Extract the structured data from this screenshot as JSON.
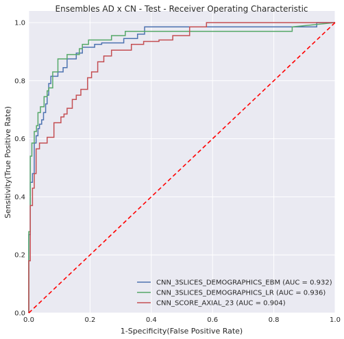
{
  "chart_data": {
    "type": "line",
    "title": "Ensembles AD x CN - Test - Receiver Operating Characteristic",
    "xlabel": "1-Specificity(False Positive Rate)",
    "ylabel": "Sensitivity(True Positive Rate)",
    "xlim": [
      0,
      1
    ],
    "ylim": [
      0,
      1.04
    ],
    "xticks": [
      0,
      0.2,
      0.4,
      0.6,
      0.8,
      1
    ],
    "xtick_labels": [
      "0.0",
      "0.2",
      "0.4",
      "0.6",
      "0.8",
      "1.0"
    ],
    "yticks": [
      0,
      0.2,
      0.4,
      0.6,
      0.8,
      1
    ],
    "ytick_labels": [
      "0.0",
      "0.2",
      "0.4",
      "0.6",
      "0.8",
      "1.0"
    ],
    "grid": true,
    "legend_position": "lower-right",
    "series": [
      {
        "name": "CNN_3SLICES_DEMOGRAPHICS_EBM (AUC = 0.932)",
        "color": "#4c72b0",
        "x": [
          0,
          0,
          0.005,
          0.005,
          0.012,
          0.012,
          0.018,
          0.018,
          0.024,
          0.024,
          0.03,
          0.03,
          0.035,
          0.035,
          0.042,
          0.042,
          0.048,
          0.048,
          0.055,
          0.055,
          0.06,
          0.06,
          0.065,
          0.065,
          0.072,
          0.072,
          0.095,
          0.095,
          0.112,
          0.112,
          0.125,
          0.125,
          0.155,
          0.155,
          0.175,
          0.175,
          0.215,
          0.215,
          0.238,
          0.238,
          0.31,
          0.31,
          0.355,
          0.355,
          0.378,
          0.378,
          0.94,
          0.94,
          1
        ],
        "y": [
          0,
          0.27,
          0.27,
          0.45,
          0.45,
          0.48,
          0.48,
          0.585,
          0.585,
          0.61,
          0.61,
          0.635,
          0.635,
          0.65,
          0.65,
          0.665,
          0.665,
          0.69,
          0.69,
          0.72,
          0.72,
          0.75,
          0.75,
          0.79,
          0.79,
          0.815,
          0.815,
          0.83,
          0.83,
          0.845,
          0.845,
          0.875,
          0.875,
          0.895,
          0.895,
          0.915,
          0.915,
          0.925,
          0.925,
          0.93,
          0.93,
          0.945,
          0.945,
          0.96,
          0.96,
          0.985,
          0.985,
          1,
          1
        ]
      },
      {
        "name": "CNN_3SLICES_DEMOGRAPHICS_LR (AUC = 0.936)",
        "color": "#55a868",
        "x": [
          0,
          0,
          0.005,
          0.005,
          0.01,
          0.01,
          0.018,
          0.018,
          0.025,
          0.025,
          0.03,
          0.03,
          0.038,
          0.038,
          0.05,
          0.05,
          0.06,
          0.06,
          0.065,
          0.065,
          0.078,
          0.078,
          0.095,
          0.095,
          0.125,
          0.125,
          0.165,
          0.165,
          0.175,
          0.175,
          0.195,
          0.195,
          0.27,
          0.27,
          0.315,
          0.315,
          0.86,
          0.86,
          1
        ],
        "y": [
          0,
          0.28,
          0.28,
          0.54,
          0.54,
          0.585,
          0.585,
          0.625,
          0.625,
          0.645,
          0.645,
          0.69,
          0.69,
          0.71,
          0.71,
          0.745,
          0.745,
          0.765,
          0.765,
          0.775,
          0.775,
          0.83,
          0.83,
          0.875,
          0.875,
          0.89,
          0.89,
          0.91,
          0.91,
          0.925,
          0.925,
          0.94,
          0.94,
          0.955,
          0.955,
          0.97,
          0.97,
          0.985,
          1
        ]
      },
      {
        "name": "CNN_SCORE_AXIAL_23 (AUC = 0.904)",
        "color": "#c44e52",
        "x": [
          0,
          0,
          0.005,
          0.005,
          0.012,
          0.012,
          0.018,
          0.018,
          0.024,
          0.024,
          0.035,
          0.035,
          0.06,
          0.06,
          0.082,
          0.082,
          0.105,
          0.105,
          0.115,
          0.115,
          0.125,
          0.125,
          0.142,
          0.142,
          0.155,
          0.155,
          0.17,
          0.17,
          0.192,
          0.192,
          0.205,
          0.205,
          0.225,
          0.225,
          0.245,
          0.245,
          0.27,
          0.27,
          0.335,
          0.335,
          0.375,
          0.375,
          0.425,
          0.425,
          0.47,
          0.47,
          0.525,
          0.525,
          0.58,
          0.58,
          0.86,
          0.86,
          1
        ],
        "y": [
          0,
          0.18,
          0.18,
          0.37,
          0.37,
          0.43,
          0.43,
          0.48,
          0.48,
          0.565,
          0.565,
          0.585,
          0.585,
          0.605,
          0.605,
          0.655,
          0.655,
          0.675,
          0.675,
          0.685,
          0.685,
          0.705,
          0.705,
          0.735,
          0.735,
          0.75,
          0.75,
          0.77,
          0.77,
          0.81,
          0.81,
          0.83,
          0.83,
          0.865,
          0.865,
          0.885,
          0.885,
          0.905,
          0.905,
          0.925,
          0.925,
          0.935,
          0.935,
          0.94,
          0.94,
          0.955,
          0.955,
          0.985,
          0.985,
          1,
          1,
          1,
          1
        ]
      },
      {
        "name": "",
        "color": "#ff0000",
        "dashed": true,
        "x": [
          0,
          1
        ],
        "y": [
          0,
          1
        ]
      }
    ]
  }
}
